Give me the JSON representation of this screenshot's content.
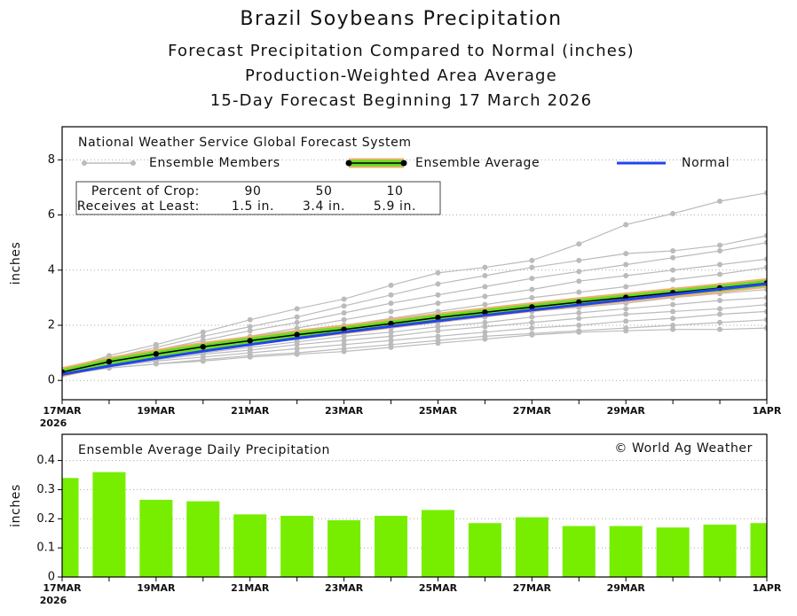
{
  "chart_data": [
    {
      "type": "line",
      "title": "Brazil Soybeans Precipitation",
      "subtitles": [
        "Forecast Precipitation Compared to Normal (inches)",
        "Production-Weighted Area Average",
        "15-Day Forecast Beginning 17 March 2026"
      ],
      "annotation": "National Weather Service Global Forecast System",
      "y_label": "inches",
      "categories": [
        "17MAR",
        null,
        "19MAR",
        null,
        "21MAR",
        null,
        "23MAR",
        null,
        "25MAR",
        null,
        "27MAR",
        null,
        "29MAR",
        null,
        null,
        "1APR"
      ],
      "x_year_label": "2026",
      "ylim": [
        -0.7,
        9.2
      ],
      "yticks": [
        0,
        2,
        4,
        6,
        8
      ],
      "grid": true,
      "ensemble_members": {
        "name": "Ensemble Members",
        "color": "#bbbbbb",
        "members": [
          [
            0.35,
            0.9,
            1.3,
            1.75,
            2.2,
            2.6,
            2.95,
            3.45,
            3.9,
            4.1,
            4.35,
            4.95,
            5.65,
            6.05,
            6.5,
            6.8
          ],
          [
            0.3,
            0.8,
            1.2,
            1.6,
            1.95,
            2.3,
            2.7,
            3.1,
            3.5,
            3.8,
            4.1,
            4.35,
            4.6,
            4.7,
            4.9,
            5.25
          ],
          [
            0.3,
            0.75,
            1.1,
            1.45,
            1.8,
            2.1,
            2.45,
            2.8,
            3.1,
            3.4,
            3.7,
            3.95,
            4.2,
            4.45,
            4.7,
            5.0
          ],
          [
            0.3,
            0.7,
            1.0,
            1.35,
            1.6,
            1.9,
            2.2,
            2.5,
            2.8,
            3.05,
            3.3,
            3.6,
            3.8,
            4.0,
            4.2,
            4.4
          ],
          [
            0.28,
            0.68,
            0.95,
            1.25,
            1.5,
            1.75,
            2.0,
            2.25,
            2.5,
            2.75,
            3.0,
            3.2,
            3.4,
            3.65,
            3.85,
            4.1
          ],
          [
            0.28,
            0.65,
            0.9,
            1.15,
            1.4,
            1.6,
            1.85,
            2.05,
            2.3,
            2.5,
            2.7,
            2.9,
            3.1,
            3.3,
            3.45,
            3.6
          ],
          [
            0.25,
            0.6,
            0.85,
            1.05,
            1.3,
            1.5,
            1.7,
            1.9,
            2.1,
            2.3,
            2.5,
            2.65,
            2.8,
            3.0,
            3.15,
            3.3
          ],
          [
            0.25,
            0.55,
            0.8,
            1.0,
            1.2,
            1.4,
            1.6,
            1.75,
            1.95,
            2.1,
            2.3,
            2.45,
            2.6,
            2.75,
            2.9,
            3.0
          ],
          [
            0.25,
            0.55,
            0.75,
            0.95,
            1.1,
            1.3,
            1.45,
            1.6,
            1.8,
            1.95,
            2.1,
            2.25,
            2.4,
            2.5,
            2.6,
            2.75
          ],
          [
            0.22,
            0.5,
            0.7,
            0.85,
            1.0,
            1.15,
            1.3,
            1.45,
            1.6,
            1.75,
            1.9,
            2.0,
            2.15,
            2.25,
            2.4,
            2.5
          ],
          [
            0.2,
            0.45,
            0.6,
            0.75,
            0.9,
            1.0,
            1.15,
            1.3,
            1.45,
            1.6,
            1.7,
            1.8,
            1.9,
            2.0,
            2.1,
            2.2
          ],
          [
            0.2,
            0.45,
            0.6,
            0.7,
            0.85,
            0.95,
            1.05,
            1.2,
            1.35,
            1.5,
            1.65,
            1.75,
            1.8,
            1.85,
            1.85,
            1.9
          ]
        ]
      },
      "series": [
        {
          "name": "Ensemble Average",
          "color": "#66dd22",
          "values": [
            0.3,
            0.68,
            0.96,
            1.22,
            1.44,
            1.66,
            1.85,
            2.06,
            2.28,
            2.47,
            2.66,
            2.84,
            3.01,
            3.18,
            3.35,
            3.53
          ]
        },
        {
          "name": "Normal",
          "color": "#2244ee",
          "values": [
            0.22,
            0.52,
            0.8,
            1.06,
            1.3,
            1.53,
            1.75,
            1.96,
            2.16,
            2.36,
            2.55,
            2.74,
            2.93,
            3.12,
            3.31,
            3.5
          ]
        }
      ],
      "crop_table": {
        "rows": [
          [
            "Percent of Crop:",
            90,
            50,
            10
          ],
          [
            "Receives at Least:",
            "1.5 in.",
            "3.4 in.",
            "5.9 in."
          ]
        ]
      }
    },
    {
      "type": "bar",
      "title": "Ensemble Average Daily Precipitation",
      "annotation": "© World Ag Weather",
      "y_label": "inches",
      "categories": [
        "17MAR",
        null,
        "19MAR",
        null,
        "21MAR",
        null,
        "23MAR",
        null,
        "25MAR",
        null,
        "27MAR",
        null,
        "29MAR",
        null,
        null,
        "1APR"
      ],
      "x_year_label": "2026",
      "values": [
        0.34,
        0.36,
        0.265,
        0.26,
        0.215,
        0.21,
        0.195,
        0.21,
        0.23,
        0.185,
        0.205,
        0.175,
        0.175,
        0.17,
        0.18,
        0.185
      ],
      "color": "#77ee00",
      "ylim": [
        0,
        0.49
      ],
      "yticks": [
        0,
        0.1,
        0.2,
        0.3,
        0.4
      ],
      "grid": true
    }
  ]
}
